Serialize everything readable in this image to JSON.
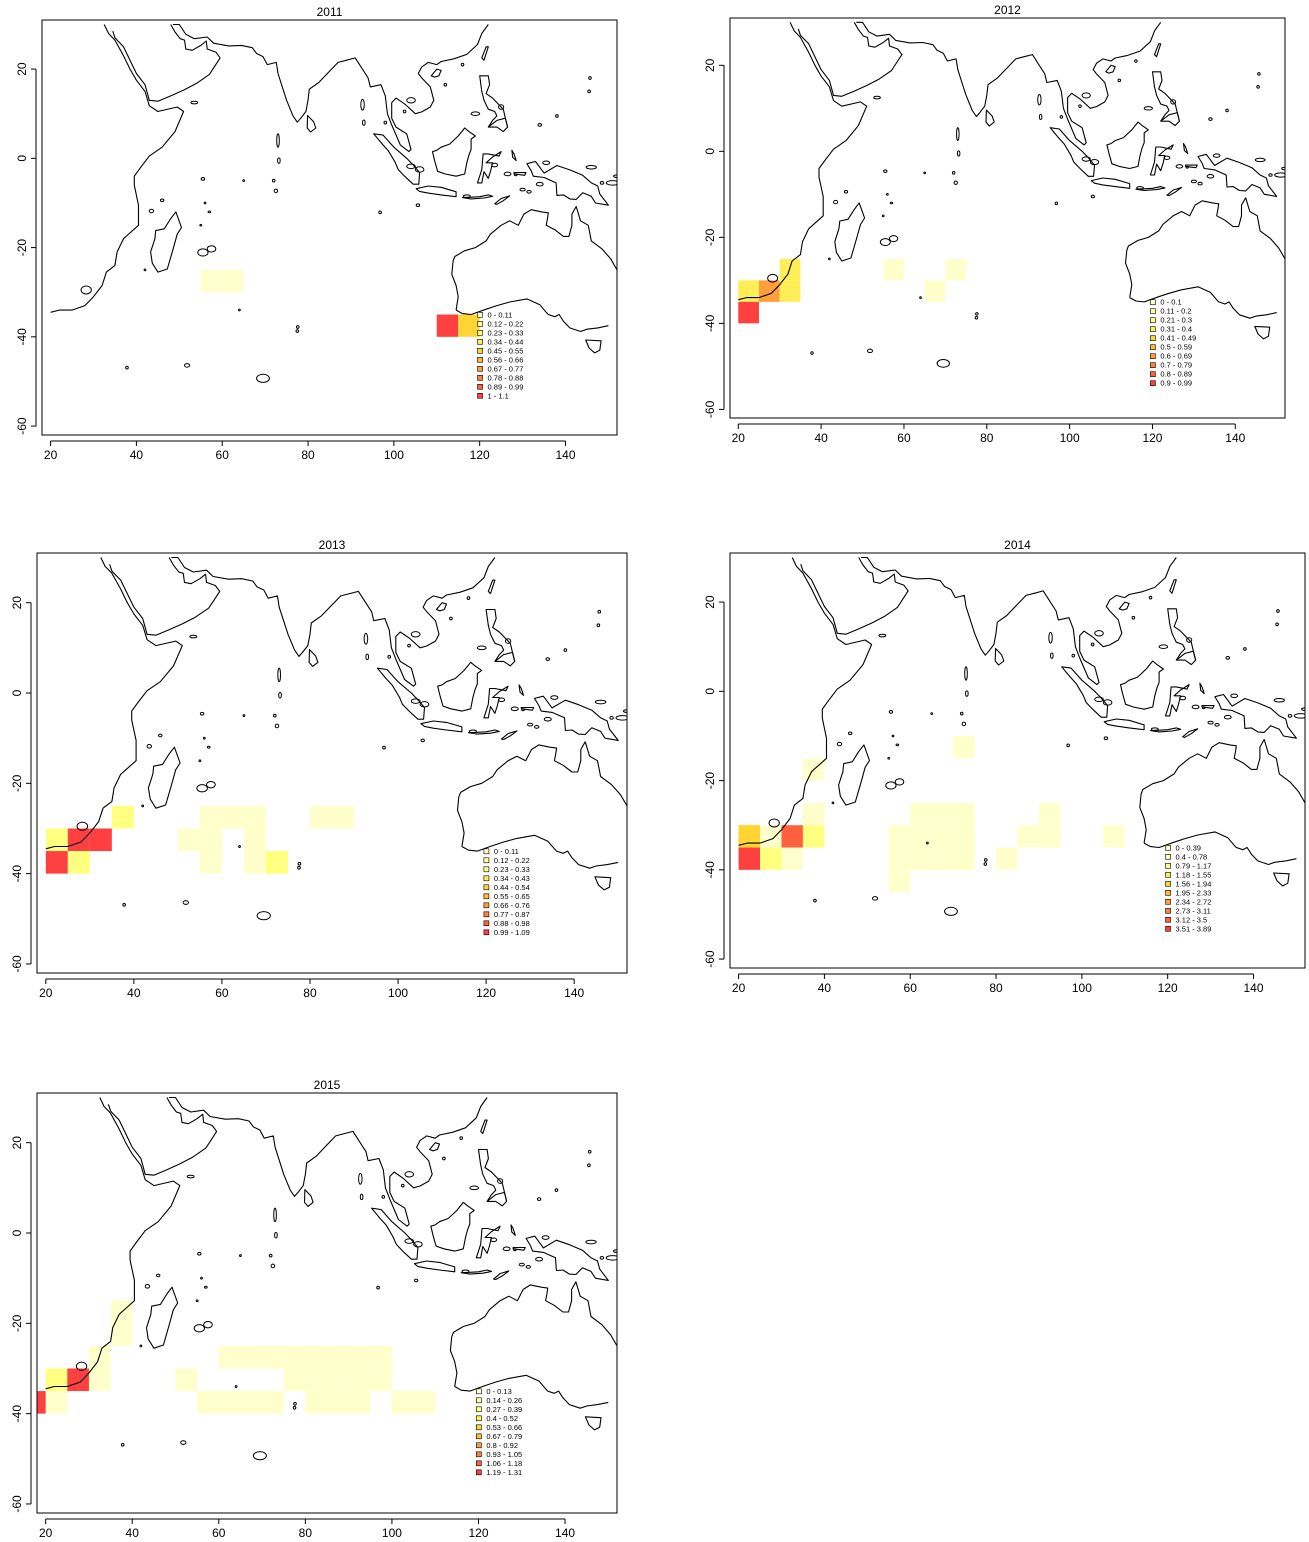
{
  "palette": [
    "#ffffcc",
    "#ffffa6",
    "#ffff80",
    "#ffee55",
    "#ffd533",
    "#ffbb33",
    "#ff9f3c",
    "#ff8040",
    "#ff6040",
    "#ff4040"
  ],
  "chart_data": [
    {
      "type": "heatmap",
      "title": "2011",
      "xlim": [
        20,
        150
      ],
      "ylim": [
        -60,
        30
      ],
      "x_ticks": [
        "20",
        "40",
        "60",
        "80",
        "100",
        "120",
        "140"
      ],
      "y_ticks": [
        "20",
        "0",
        "-20",
        "-40",
        "-60"
      ],
      "legend": [
        "0 - 0.11",
        "0.12 - 0.22",
        "0.23 - 0.33",
        "0.34 - 0.44",
        "0.45 - 0.55",
        "0.56 - 0.66",
        "0.67 - 0.77",
        "0.78 - 0.88",
        "0.89 - 0.99",
        "1 - 1.1"
      ],
      "cells": [
        {
          "lon": 55,
          "lat": -30,
          "bin": 0
        },
        {
          "lon": 60,
          "lat": -30,
          "bin": 0
        },
        {
          "lon": 110,
          "lat": -40,
          "bin": 9
        },
        {
          "lon": 115,
          "lat": -40,
          "bin": 4
        }
      ]
    },
    {
      "type": "heatmap",
      "title": "2012",
      "xlim": [
        20,
        150
      ],
      "ylim": [
        -60,
        30
      ],
      "x_ticks": [
        "20",
        "40",
        "60",
        "80",
        "100",
        "120",
        "140"
      ],
      "y_ticks": [
        "20",
        "0",
        "-20",
        "-40",
        "-60"
      ],
      "legend": [
        "0 - 0.1",
        "0.11 - 0.2",
        "0.21 - 0.3",
        "0.31 - 0.4",
        "0.41 - 0.49",
        "0.5 - 0.59",
        "0.6 - 0.69",
        "0.7 - 0.79",
        "0.8 - 0.89",
        "0.9 - 0.99"
      ],
      "cells": [
        {
          "lon": 20,
          "lat": -35,
          "bin": 3
        },
        {
          "lon": 25,
          "lat": -35,
          "bin": 6
        },
        {
          "lon": 30,
          "lat": -35,
          "bin": 3
        },
        {
          "lon": 30,
          "lat": -30,
          "bin": 3
        },
        {
          "lon": 20,
          "lat": -40,
          "bin": 9
        },
        {
          "lon": 55,
          "lat": -30,
          "bin": 0
        },
        {
          "lon": 70,
          "lat": -30,
          "bin": 0
        },
        {
          "lon": 65,
          "lat": -35,
          "bin": 0
        }
      ]
    },
    {
      "type": "heatmap",
      "title": "2013",
      "xlim": [
        20,
        150
      ],
      "ylim": [
        -60,
        30
      ],
      "x_ticks": [
        "20",
        "40",
        "60",
        "80",
        "100",
        "120",
        "140"
      ],
      "y_ticks": [
        "20",
        "0",
        "-20",
        "-40",
        "-60"
      ],
      "legend": [
        "0 - 0.11",
        "0.12 - 0.22",
        "0.23 - 0.33",
        "0.34 - 0.43",
        "0.44 - 0.54",
        "0.55 - 0.65",
        "0.66 - 0.76",
        "0.77 - 0.87",
        "0.88 - 0.98",
        "0.99 - 1.09"
      ],
      "cells": [
        {
          "lon": 20,
          "lat": -35,
          "bin": 2
        },
        {
          "lon": 25,
          "lat": -35,
          "bin": 9
        },
        {
          "lon": 30,
          "lat": -35,
          "bin": 9
        },
        {
          "lon": 20,
          "lat": -40,
          "bin": 9
        },
        {
          "lon": 25,
          "lat": -40,
          "bin": 2
        },
        {
          "lon": 35,
          "lat": -30,
          "bin": 2
        },
        {
          "lon": 55,
          "lat": -30,
          "bin": 0
        },
        {
          "lon": 60,
          "lat": -30,
          "bin": 0
        },
        {
          "lon": 65,
          "lat": -30,
          "bin": 0
        },
        {
          "lon": 50,
          "lat": -35,
          "bin": 0
        },
        {
          "lon": 55,
          "lat": -35,
          "bin": 0
        },
        {
          "lon": 65,
          "lat": -35,
          "bin": 0
        },
        {
          "lon": 55,
          "lat": -40,
          "bin": 0
        },
        {
          "lon": 65,
          "lat": -40,
          "bin": 0
        },
        {
          "lon": 70,
          "lat": -40,
          "bin": 2
        },
        {
          "lon": 80,
          "lat": -30,
          "bin": 0
        },
        {
          "lon": 85,
          "lat": -30,
          "bin": 0
        }
      ]
    },
    {
      "type": "heatmap",
      "title": "2014",
      "xlim": [
        20,
        150
      ],
      "ylim": [
        -60,
        30
      ],
      "x_ticks": [
        "20",
        "40",
        "60",
        "80",
        "100",
        "120",
        "140"
      ],
      "y_ticks": [
        "20",
        "0",
        "-20",
        "-40",
        "-60"
      ],
      "legend": [
        "0 - 0.39",
        "0.4 - 0.78",
        "0.79 - 1.17",
        "1.18 - 1.55",
        "1.56 - 1.94",
        "1.95 - 2.33",
        "2.34 - 2.72",
        "2.73 - 3.11",
        "3.12 - 3.5",
        "3.51 - 3.89"
      ],
      "cells": [
        {
          "lon": 20,
          "lat": -35,
          "bin": 4
        },
        {
          "lon": 20,
          "lat": -40,
          "bin": 9
        },
        {
          "lon": 20,
          "lat": -35,
          "bin": 4
        },
        {
          "lon": 25,
          "lat": -35,
          "bin": 0
        },
        {
          "lon": 30,
          "lat": -35,
          "bin": 8
        },
        {
          "lon": 35,
          "lat": -35,
          "bin": 2
        },
        {
          "lon": 25,
          "lat": -40,
          "bin": 2
        },
        {
          "lon": 30,
          "lat": -40,
          "bin": 0
        },
        {
          "lon": 35,
          "lat": -20,
          "bin": 0
        },
        {
          "lon": 35,
          "lat": -30,
          "bin": 0
        },
        {
          "lon": 70,
          "lat": -15,
          "bin": 0
        },
        {
          "lon": 55,
          "lat": -35,
          "bin": 0
        },
        {
          "lon": 55,
          "lat": -40,
          "bin": 0
        },
        {
          "lon": 55,
          "lat": -45,
          "bin": 0
        },
        {
          "lon": 60,
          "lat": -30,
          "bin": 0
        },
        {
          "lon": 65,
          "lat": -30,
          "bin": 0
        },
        {
          "lon": 70,
          "lat": -30,
          "bin": 0
        },
        {
          "lon": 60,
          "lat": -35,
          "bin": 0
        },
        {
          "lon": 65,
          "lat": -35,
          "bin": 0
        },
        {
          "lon": 70,
          "lat": -35,
          "bin": 0
        },
        {
          "lon": 60,
          "lat": -40,
          "bin": 0
        },
        {
          "lon": 65,
          "lat": -40,
          "bin": 0
        },
        {
          "lon": 70,
          "lat": -40,
          "bin": 0
        },
        {
          "lon": 80,
          "lat": -40,
          "bin": 0
        },
        {
          "lon": 85,
          "lat": -35,
          "bin": 0
        },
        {
          "lon": 90,
          "lat": -35,
          "bin": 0
        },
        {
          "lon": 90,
          "lat": -30,
          "bin": 0
        },
        {
          "lon": 105,
          "lat": -35,
          "bin": 0
        }
      ]
    },
    {
      "type": "heatmap",
      "title": "2015",
      "xlim": [
        20,
        150
      ],
      "ylim": [
        -60,
        30
      ],
      "x_ticks": [
        "20",
        "40",
        "60",
        "80",
        "100",
        "120",
        "140"
      ],
      "y_ticks": [
        "20",
        "0",
        "-20",
        "-40",
        "-60"
      ],
      "legend": [
        "0 - 0.13",
        "0.14 - 0.26",
        "0.27 - 0.39",
        "0.4 - 0.52",
        "0.53 - 0.66",
        "0.67 - 0.79",
        "0.8 - 0.92",
        "0.93 - 1.05",
        "1.06 - 1.18",
        "1.19 - 1.31"
      ],
      "cells": [
        {
          "lon": 35,
          "lat": -20,
          "bin": 0
        },
        {
          "lon": 35,
          "lat": -25,
          "bin": 0
        },
        {
          "lon": 30,
          "lat": -30,
          "bin": 0
        },
        {
          "lon": 30,
          "lat": -35,
          "bin": 0
        },
        {
          "lon": 20,
          "lat": -35,
          "bin": 2
        },
        {
          "lon": 25,
          "lat": -35,
          "bin": 9
        },
        {
          "lon": 20,
          "lat": -40,
          "bin": 0
        },
        {
          "lon": 15,
          "lat": -40,
          "bin": 9
        },
        {
          "lon": 50,
          "lat": -35,
          "bin": 0
        },
        {
          "lon": 55,
          "lat": -40,
          "bin": 0
        },
        {
          "lon": 60,
          "lat": -40,
          "bin": 0
        },
        {
          "lon": 65,
          "lat": -40,
          "bin": 0
        },
        {
          "lon": 70,
          "lat": -40,
          "bin": 0
        },
        {
          "lon": 60,
          "lat": -30,
          "bin": 0
        },
        {
          "lon": 65,
          "lat": -30,
          "bin": 0
        },
        {
          "lon": 70,
          "lat": -30,
          "bin": 0
        },
        {
          "lon": 75,
          "lat": -30,
          "bin": 0
        },
        {
          "lon": 80,
          "lat": -30,
          "bin": 0
        },
        {
          "lon": 85,
          "lat": -30,
          "bin": 0
        },
        {
          "lon": 90,
          "lat": -30,
          "bin": 0
        },
        {
          "lon": 95,
          "lat": -30,
          "bin": 0
        },
        {
          "lon": 75,
          "lat": -35,
          "bin": 0
        },
        {
          "lon": 80,
          "lat": -35,
          "bin": 0
        },
        {
          "lon": 85,
          "lat": -35,
          "bin": 0
        },
        {
          "lon": 90,
          "lat": -35,
          "bin": 0
        },
        {
          "lon": 95,
          "lat": -35,
          "bin": 0
        },
        {
          "lon": 80,
          "lat": -40,
          "bin": 0
        },
        {
          "lon": 85,
          "lat": -40,
          "bin": 0
        },
        {
          "lon": 90,
          "lat": -40,
          "bin": 0
        },
        {
          "lon": 100,
          "lat": -40,
          "bin": 0
        },
        {
          "lon": 105,
          "lat": -40,
          "bin": 0
        }
      ]
    }
  ]
}
